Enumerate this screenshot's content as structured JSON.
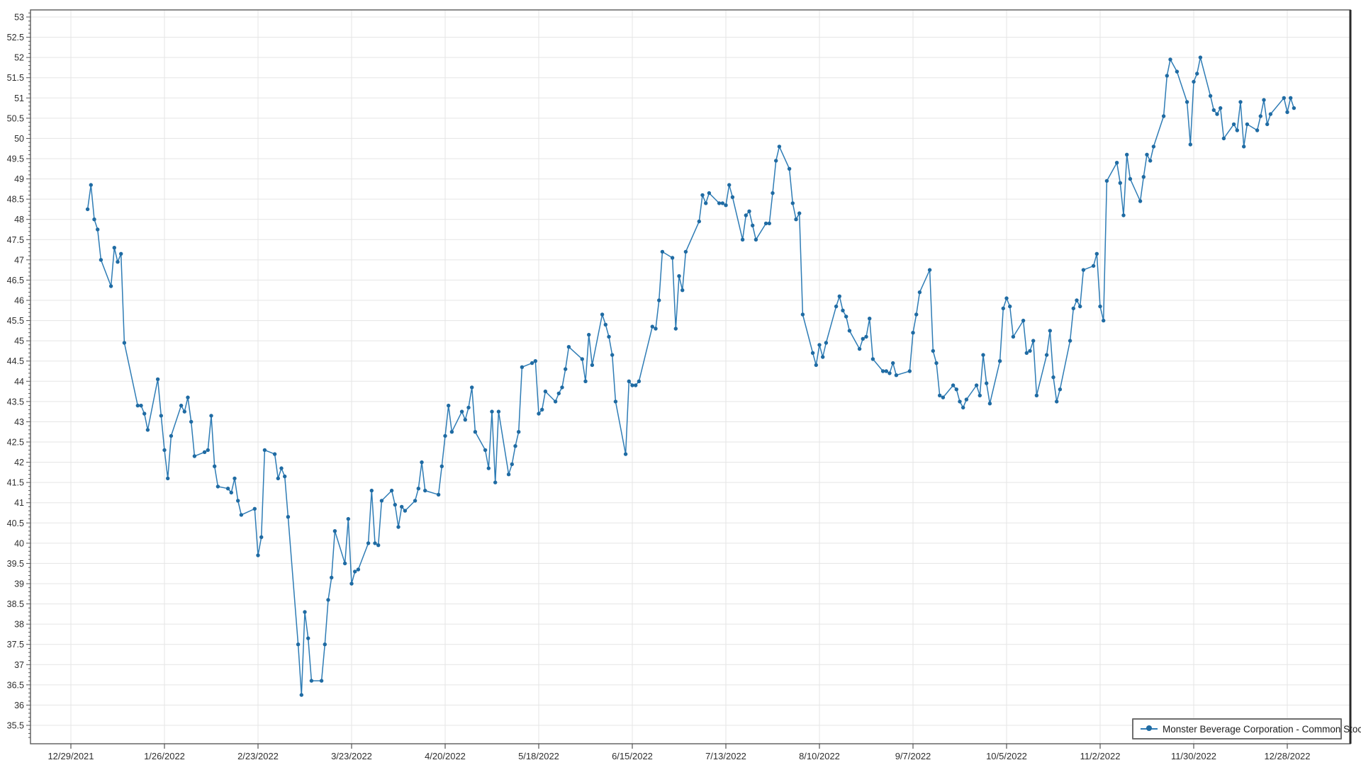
{
  "chart_data": {
    "type": "line",
    "title": "",
    "xlabel": "",
    "ylabel": "",
    "grid": true,
    "legend_position": "bottom-right",
    "colors": {
      "line": "#2e7cb5",
      "marker": "#1f6ba3",
      "gridline": "#e5e5e5",
      "axis_border": "#5a5a5a",
      "axis_border_right": "#2a2a2a",
      "tick": "#555555",
      "label": "#2e2e2e"
    },
    "y_axis": {
      "label_min": 35.5,
      "label_max": 53,
      "major_step": 0.5,
      "minor_step": 0.1
    },
    "x_axis": {
      "anchor_date": "2021-12-29",
      "interval_days": 28,
      "tick_labels": [
        "12/29/2021",
        "1/26/2022",
        "2/23/2022",
        "3/23/2022",
        "4/20/2022",
        "5/18/2022",
        "6/15/2022",
        "7/13/2022",
        "8/10/2022",
        "9/7/2022",
        "10/5/2022",
        "11/2/2022",
        "11/30/2022",
        "12/28/2022"
      ]
    },
    "series": [
      {
        "name": "Monster Beverage Corporation - Common Stock",
        "points": [
          [
            "2022-01-03",
            48.25
          ],
          [
            "2022-01-04",
            48.85
          ],
          [
            "2022-01-05",
            48.0
          ],
          [
            "2022-01-06",
            47.75
          ],
          [
            "2022-01-07",
            47.0
          ],
          [
            "2022-01-10",
            46.35
          ],
          [
            "2022-01-11",
            47.3
          ],
          [
            "2022-01-12",
            46.95
          ],
          [
            "2022-01-13",
            47.15
          ],
          [
            "2022-01-14",
            44.95
          ],
          [
            "2022-01-18",
            43.4
          ],
          [
            "2022-01-19",
            43.4
          ],
          [
            "2022-01-20",
            43.2
          ],
          [
            "2022-01-21",
            42.8
          ],
          [
            "2022-01-24",
            44.05
          ],
          [
            "2022-01-25",
            43.15
          ],
          [
            "2022-01-26",
            42.3
          ],
          [
            "2022-01-27",
            41.6
          ],
          [
            "2022-01-28",
            42.65
          ],
          [
            "2022-01-31",
            43.4
          ],
          [
            "2022-02-01",
            43.25
          ],
          [
            "2022-02-02",
            43.6
          ],
          [
            "2022-02-03",
            43.0
          ],
          [
            "2022-02-04",
            42.15
          ],
          [
            "2022-02-07",
            42.25
          ],
          [
            "2022-02-08",
            42.3
          ],
          [
            "2022-02-09",
            43.15
          ],
          [
            "2022-02-10",
            41.9
          ],
          [
            "2022-02-11",
            41.4
          ],
          [
            "2022-02-14",
            41.35
          ],
          [
            "2022-02-15",
            41.25
          ],
          [
            "2022-02-16",
            41.6
          ],
          [
            "2022-02-17",
            41.05
          ],
          [
            "2022-02-18",
            40.7
          ],
          [
            "2022-02-22",
            40.85
          ],
          [
            "2022-02-23",
            39.7
          ],
          [
            "2022-02-24",
            40.15
          ],
          [
            "2022-02-25",
            42.3
          ],
          [
            "2022-02-28",
            42.2
          ],
          [
            "2022-03-01",
            41.6
          ],
          [
            "2022-03-02",
            41.85
          ],
          [
            "2022-03-03",
            41.65
          ],
          [
            "2022-03-04",
            40.65
          ],
          [
            "2022-03-07",
            37.5
          ],
          [
            "2022-03-08",
            36.25
          ],
          [
            "2022-03-09",
            38.3
          ],
          [
            "2022-03-10",
            37.65
          ],
          [
            "2022-03-11",
            36.6
          ],
          [
            "2022-03-14",
            36.6
          ],
          [
            "2022-03-15",
            37.5
          ],
          [
            "2022-03-16",
            38.6
          ],
          [
            "2022-03-17",
            39.15
          ],
          [
            "2022-03-18",
            40.3
          ],
          [
            "2022-03-21",
            39.5
          ],
          [
            "2022-03-22",
            40.6
          ],
          [
            "2022-03-23",
            39.0
          ],
          [
            "2022-03-24",
            39.3
          ],
          [
            "2022-03-25",
            39.35
          ],
          [
            "2022-03-28",
            40.0
          ],
          [
            "2022-03-29",
            41.3
          ],
          [
            "2022-03-30",
            40.0
          ],
          [
            "2022-03-31",
            39.95
          ],
          [
            "2022-04-01",
            41.05
          ],
          [
            "2022-04-04",
            41.3
          ],
          [
            "2022-04-05",
            40.95
          ],
          [
            "2022-04-06",
            40.4
          ],
          [
            "2022-04-07",
            40.9
          ],
          [
            "2022-04-08",
            40.8
          ],
          [
            "2022-04-11",
            41.05
          ],
          [
            "2022-04-12",
            41.35
          ],
          [
            "2022-04-13",
            42.0
          ],
          [
            "2022-04-14",
            41.3
          ],
          [
            "2022-04-18",
            41.2
          ],
          [
            "2022-04-19",
            41.9
          ],
          [
            "2022-04-20",
            42.65
          ],
          [
            "2022-04-21",
            43.4
          ],
          [
            "2022-04-22",
            42.75
          ],
          [
            "2022-04-25",
            43.25
          ],
          [
            "2022-04-26",
            43.05
          ],
          [
            "2022-04-27",
            43.35
          ],
          [
            "2022-04-28",
            43.85
          ],
          [
            "2022-04-29",
            42.75
          ],
          [
            "2022-05-02",
            42.3
          ],
          [
            "2022-05-03",
            41.85
          ],
          [
            "2022-05-04",
            43.25
          ],
          [
            "2022-05-05",
            41.5
          ],
          [
            "2022-05-06",
            43.25
          ],
          [
            "2022-05-09",
            41.7
          ],
          [
            "2022-05-10",
            41.95
          ],
          [
            "2022-05-11",
            42.4
          ],
          [
            "2022-05-12",
            42.75
          ],
          [
            "2022-05-13",
            44.35
          ],
          [
            "2022-05-16",
            44.45
          ],
          [
            "2022-05-17",
            44.5
          ],
          [
            "2022-05-18",
            43.2
          ],
          [
            "2022-05-19",
            43.3
          ],
          [
            "2022-05-20",
            43.75
          ],
          [
            "2022-05-23",
            43.5
          ],
          [
            "2022-05-24",
            43.7
          ],
          [
            "2022-05-25",
            43.85
          ],
          [
            "2022-05-26",
            44.3
          ],
          [
            "2022-05-27",
            44.85
          ],
          [
            "2022-05-31",
            44.55
          ],
          [
            "2022-06-01",
            44.0
          ],
          [
            "2022-06-02",
            45.15
          ],
          [
            "2022-06-03",
            44.4
          ],
          [
            "2022-06-06",
            45.65
          ],
          [
            "2022-06-07",
            45.4
          ],
          [
            "2022-06-08",
            45.1
          ],
          [
            "2022-06-09",
            44.65
          ],
          [
            "2022-06-10",
            43.5
          ],
          [
            "2022-06-13",
            42.2
          ],
          [
            "2022-06-14",
            44.0
          ],
          [
            "2022-06-15",
            43.9
          ],
          [
            "2022-06-16",
            43.9
          ],
          [
            "2022-06-17",
            44.0
          ],
          [
            "2022-06-21",
            45.35
          ],
          [
            "2022-06-22",
            45.3
          ],
          [
            "2022-06-23",
            46.0
          ],
          [
            "2022-06-24",
            47.2
          ],
          [
            "2022-06-27",
            47.05
          ],
          [
            "2022-06-28",
            45.3
          ],
          [
            "2022-06-29",
            46.6
          ],
          [
            "2022-06-30",
            46.25
          ],
          [
            "2022-07-01",
            47.2
          ],
          [
            "2022-07-05",
            47.95
          ],
          [
            "2022-07-06",
            48.6
          ],
          [
            "2022-07-07",
            48.4
          ],
          [
            "2022-07-08",
            48.65
          ],
          [
            "2022-07-11",
            48.4
          ],
          [
            "2022-07-12",
            48.4
          ],
          [
            "2022-07-13",
            48.35
          ],
          [
            "2022-07-14",
            48.85
          ],
          [
            "2022-07-15",
            48.55
          ],
          [
            "2022-07-18",
            47.5
          ],
          [
            "2022-07-19",
            48.1
          ],
          [
            "2022-07-20",
            48.2
          ],
          [
            "2022-07-21",
            47.85
          ],
          [
            "2022-07-22",
            47.5
          ],
          [
            "2022-07-25",
            47.9
          ],
          [
            "2022-07-26",
            47.9
          ],
          [
            "2022-07-27",
            48.65
          ],
          [
            "2022-07-28",
            49.45
          ],
          [
            "2022-07-29",
            49.8
          ],
          [
            "2022-08-01",
            49.25
          ],
          [
            "2022-08-02",
            48.4
          ],
          [
            "2022-08-03",
            48.0
          ],
          [
            "2022-08-04",
            48.15
          ],
          [
            "2022-08-05",
            45.65
          ],
          [
            "2022-08-08",
            44.7
          ],
          [
            "2022-08-09",
            44.4
          ],
          [
            "2022-08-10",
            44.9
          ],
          [
            "2022-08-11",
            44.6
          ],
          [
            "2022-08-12",
            44.95
          ],
          [
            "2022-08-15",
            45.85
          ],
          [
            "2022-08-16",
            46.1
          ],
          [
            "2022-08-17",
            45.75
          ],
          [
            "2022-08-18",
            45.6
          ],
          [
            "2022-08-19",
            45.25
          ],
          [
            "2022-08-22",
            44.8
          ],
          [
            "2022-08-23",
            45.05
          ],
          [
            "2022-08-24",
            45.1
          ],
          [
            "2022-08-25",
            45.55
          ],
          [
            "2022-08-26",
            44.55
          ],
          [
            "2022-08-29",
            44.25
          ],
          [
            "2022-08-30",
            44.25
          ],
          [
            "2022-08-31",
            44.2
          ],
          [
            "2022-09-01",
            44.45
          ],
          [
            "2022-09-02",
            44.15
          ],
          [
            "2022-09-06",
            44.25
          ],
          [
            "2022-09-07",
            45.2
          ],
          [
            "2022-09-08",
            45.65
          ],
          [
            "2022-09-09",
            46.2
          ],
          [
            "2022-09-12",
            46.75
          ],
          [
            "2022-09-13",
            44.75
          ],
          [
            "2022-09-14",
            44.45
          ],
          [
            "2022-09-15",
            43.65
          ],
          [
            "2022-09-16",
            43.6
          ],
          [
            "2022-09-19",
            43.9
          ],
          [
            "2022-09-20",
            43.8
          ],
          [
            "2022-09-21",
            43.5
          ],
          [
            "2022-09-22",
            43.35
          ],
          [
            "2022-09-23",
            43.55
          ],
          [
            "2022-09-26",
            43.9
          ],
          [
            "2022-09-27",
            43.65
          ],
          [
            "2022-09-28",
            44.65
          ],
          [
            "2022-09-29",
            43.95
          ],
          [
            "2022-09-30",
            43.45
          ],
          [
            "2022-10-03",
            44.5
          ],
          [
            "2022-10-04",
            45.8
          ],
          [
            "2022-10-05",
            46.05
          ],
          [
            "2022-10-06",
            45.85
          ],
          [
            "2022-10-07",
            45.1
          ],
          [
            "2022-10-10",
            45.5
          ],
          [
            "2022-10-11",
            44.7
          ],
          [
            "2022-10-12",
            44.75
          ],
          [
            "2022-10-13",
            45.0
          ],
          [
            "2022-10-14",
            43.65
          ],
          [
            "2022-10-17",
            44.65
          ],
          [
            "2022-10-18",
            45.25
          ],
          [
            "2022-10-19",
            44.1
          ],
          [
            "2022-10-20",
            43.5
          ],
          [
            "2022-10-21",
            43.8
          ],
          [
            "2022-10-24",
            45.0
          ],
          [
            "2022-10-25",
            45.8
          ],
          [
            "2022-10-26",
            46.0
          ],
          [
            "2022-10-27",
            45.85
          ],
          [
            "2022-10-28",
            46.75
          ],
          [
            "2022-10-31",
            46.85
          ],
          [
            "2022-11-01",
            47.15
          ],
          [
            "2022-11-02",
            45.85
          ],
          [
            "2022-11-03",
            45.5
          ],
          [
            "2022-11-04",
            48.95
          ],
          [
            "2022-11-07",
            49.4
          ],
          [
            "2022-11-08",
            48.9
          ],
          [
            "2022-11-09",
            48.1
          ],
          [
            "2022-11-10",
            49.6
          ],
          [
            "2022-11-11",
            49.0
          ],
          [
            "2022-11-14",
            48.45
          ],
          [
            "2022-11-15",
            49.05
          ],
          [
            "2022-11-16",
            49.6
          ],
          [
            "2022-11-17",
            49.45
          ],
          [
            "2022-11-18",
            49.8
          ],
          [
            "2022-11-21",
            50.55
          ],
          [
            "2022-11-22",
            51.55
          ],
          [
            "2022-11-23",
            51.95
          ],
          [
            "2022-11-25",
            51.65
          ],
          [
            "2022-11-28",
            50.9
          ],
          [
            "2022-11-29",
            49.85
          ],
          [
            "2022-11-30",
            51.4
          ],
          [
            "2022-12-01",
            51.6
          ],
          [
            "2022-12-02",
            52.0
          ],
          [
            "2022-12-05",
            51.05
          ],
          [
            "2022-12-06",
            50.7
          ],
          [
            "2022-12-07",
            50.6
          ],
          [
            "2022-12-08",
            50.75
          ],
          [
            "2022-12-09",
            50.0
          ],
          [
            "2022-12-12",
            50.35
          ],
          [
            "2022-12-13",
            50.2
          ],
          [
            "2022-12-14",
            50.9
          ],
          [
            "2022-12-15",
            49.8
          ],
          [
            "2022-12-16",
            50.35
          ],
          [
            "2022-12-19",
            50.2
          ],
          [
            "2022-12-20",
            50.55
          ],
          [
            "2022-12-21",
            50.95
          ],
          [
            "2022-12-22",
            50.35
          ],
          [
            "2022-12-23",
            50.6
          ],
          [
            "2022-12-27",
            51.0
          ],
          [
            "2022-12-28",
            50.65
          ],
          [
            "2022-12-29",
            51.0
          ],
          [
            "2022-12-30",
            50.75
          ]
        ]
      }
    ]
  },
  "legend": {
    "label": "Monster Beverage Corporation - Common Stock"
  }
}
